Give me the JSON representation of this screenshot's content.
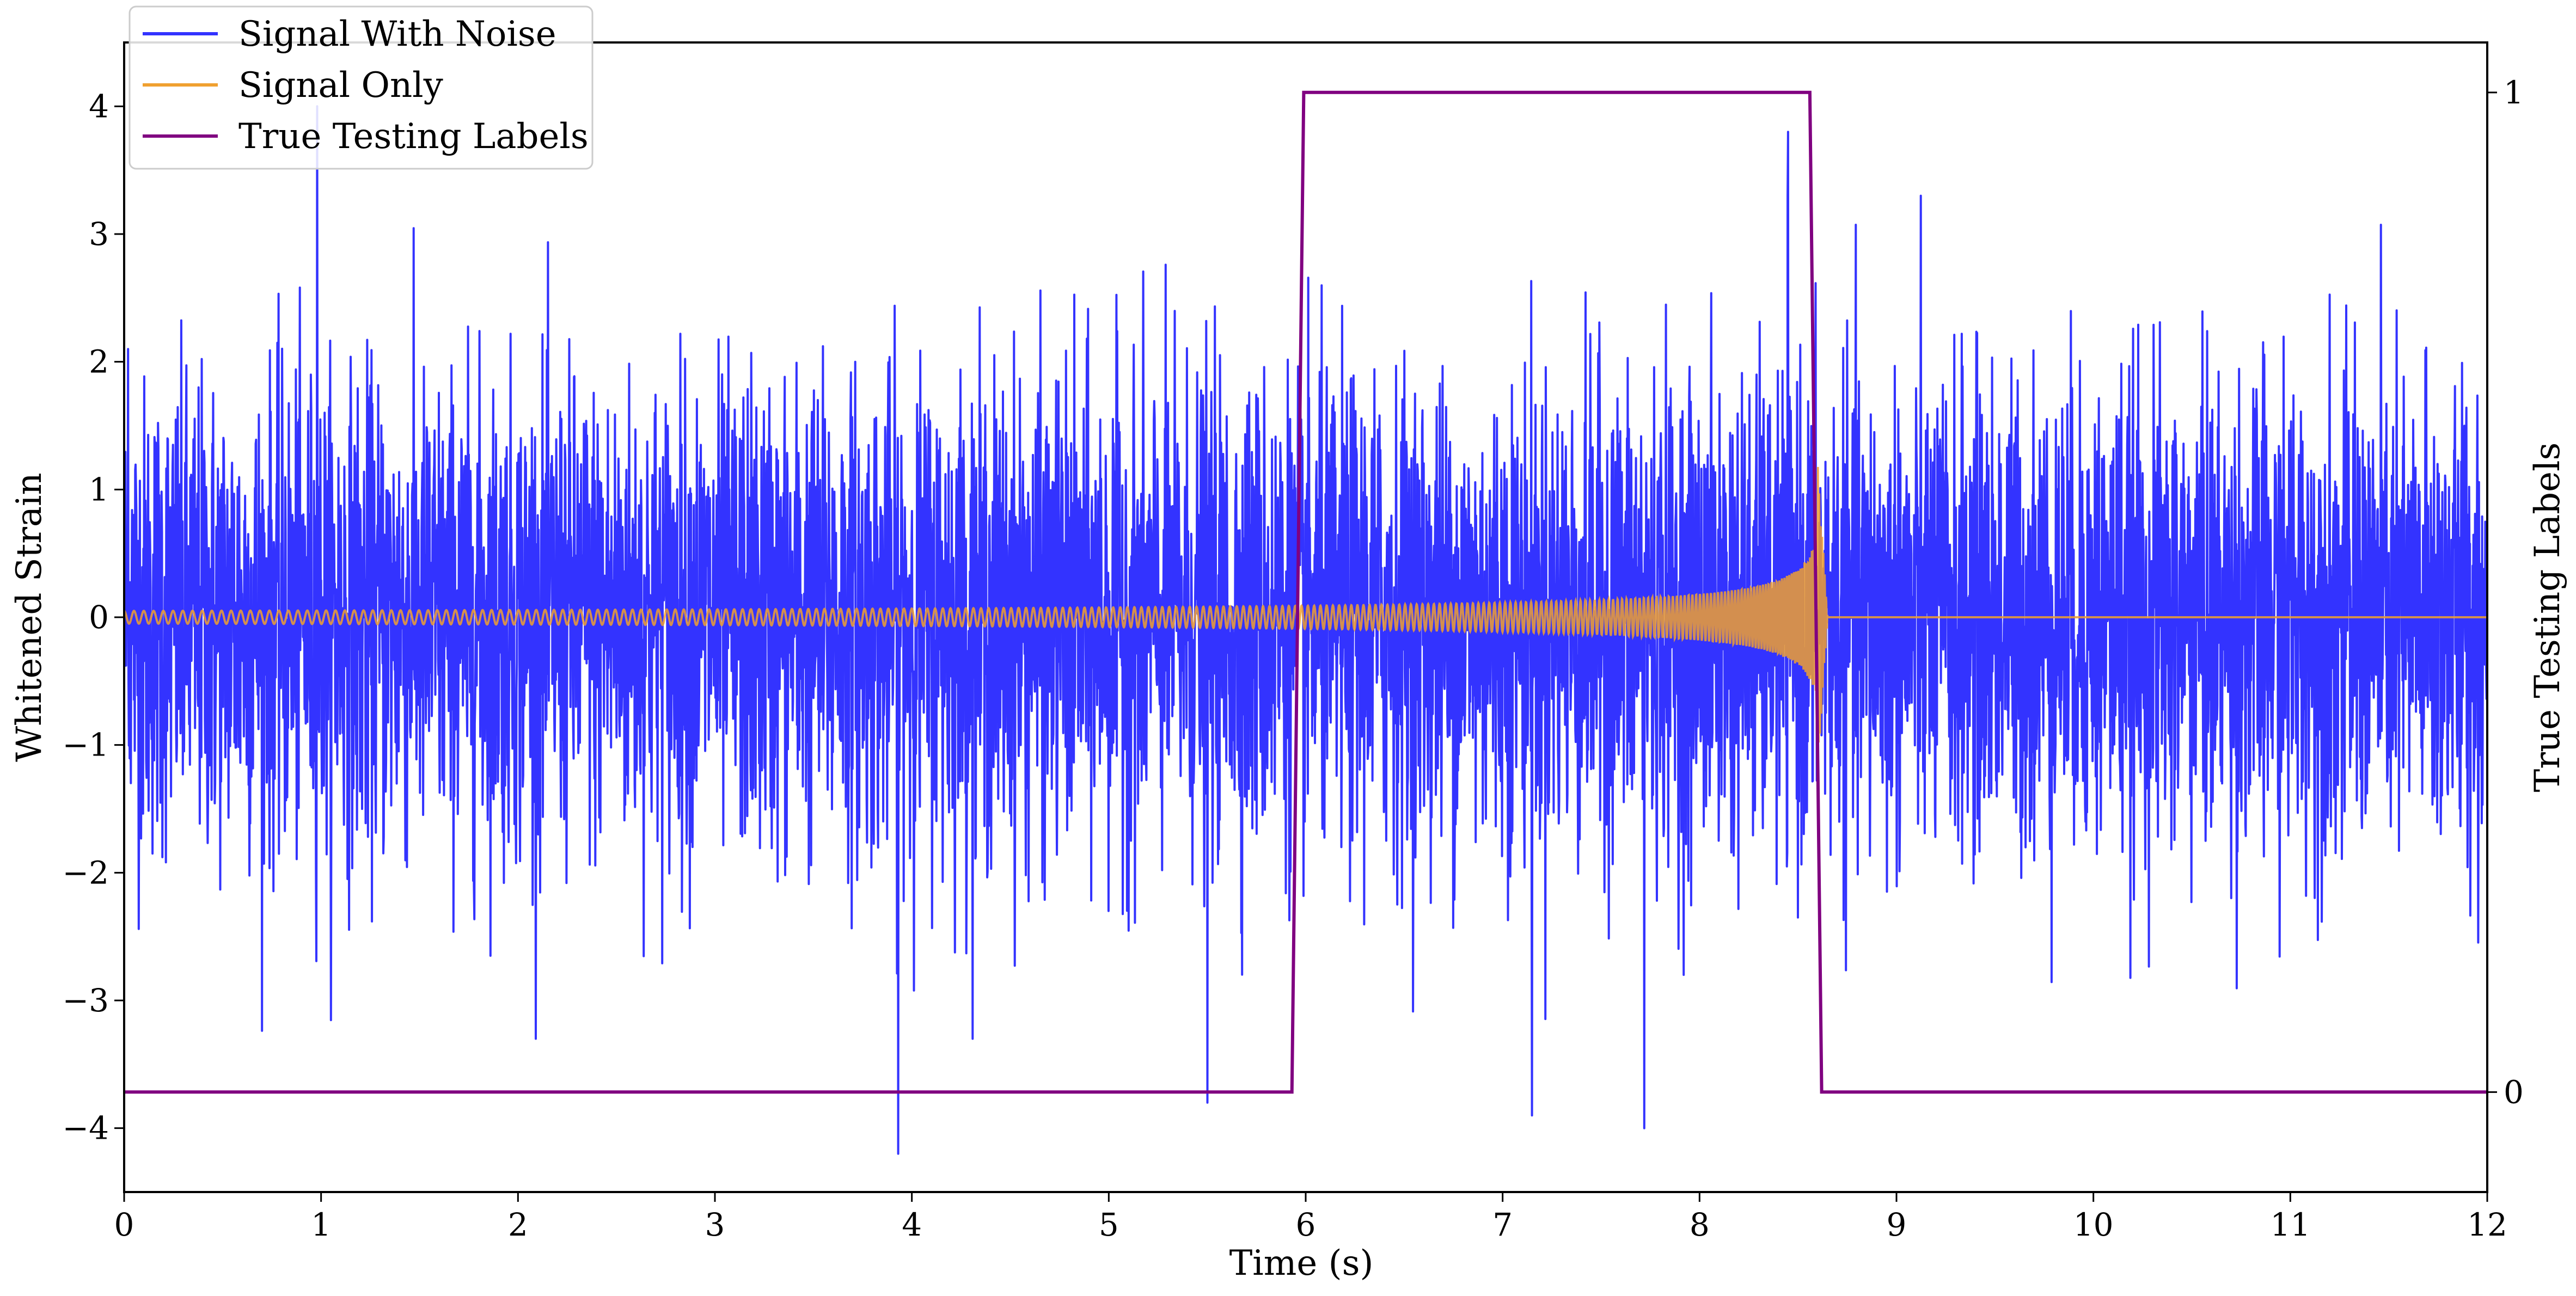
{
  "chart_data": {
    "type": "line",
    "xlabel": "Time (s)",
    "ylabel": "Whitened Strain",
    "y2label": "True Testing Labels",
    "xlim": [
      0,
      12
    ],
    "ylim": [
      -4.5,
      4.5
    ],
    "y2lim": [
      -0.1,
      1.05
    ],
    "x_ticks": [
      "0",
      "1",
      "2",
      "3",
      "4",
      "5",
      "6",
      "7",
      "8",
      "9",
      "10",
      "11",
      "12"
    ],
    "y_ticks": [
      "−4",
      "−3",
      "−2",
      "−1",
      "0",
      "1",
      "2",
      "3",
      "4"
    ],
    "y2_ticks": [
      "0",
      "1"
    ],
    "legend_position": "top-left",
    "series": [
      {
        "name": "Signal With Noise",
        "color": "#3333ff",
        "axis": "left",
        "description_envelope": {
          "x": [
            0,
            12
          ],
          "typical_amplitude": 1.5,
          "max_peak": 4.0,
          "min_trough": -4.2
        },
        "notable_peaks": [
          [
            0.98,
            4.0
          ],
          [
            3.93,
            -4.2
          ],
          [
            8.45,
            3.8
          ],
          [
            7.72,
            -4.0
          ],
          [
            7.15,
            -3.9
          ],
          [
            5.5,
            -3.8
          ],
          [
            0.02,
            2.1
          ]
        ]
      },
      {
        "name": "Signal Only",
        "color": "#f0a030",
        "axis": "left",
        "chirp": {
          "start_time": 0.0,
          "merger_time": 8.6,
          "start_amplitude": 0.05,
          "peak_amplitude": 1.2,
          "after_merger": 0
        }
      },
      {
        "name": "True Testing Labels",
        "color": "#800080",
        "axis": "right",
        "x": [
          0,
          5.93,
          5.99,
          8.56,
          8.62,
          12
        ],
        "y": [
          0,
          0,
          1,
          1,
          0,
          0
        ]
      }
    ]
  }
}
